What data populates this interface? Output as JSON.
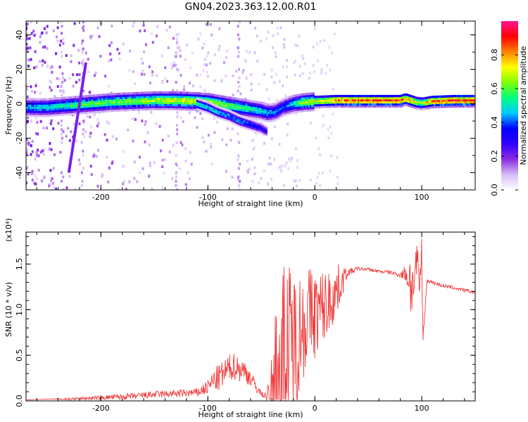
{
  "figure": {
    "title": "GN04.2023.363.12.00.R01"
  },
  "chart_data": [
    {
      "type": "heatmap",
      "xlabel": "Height of straight line (km)",
      "ylabel": "Frequency (Hz)",
      "xlim": [
        -270,
        150
      ],
      "ylim": [
        -50,
        48
      ],
      "x_ticks": [
        "-200",
        "-100",
        "0",
        "100"
      ],
      "y_ticks": [
        "-40",
        "-20",
        "0",
        "20",
        "40"
      ],
      "grid": false,
      "colorbar": {
        "label": "Normalized spectral amplitude",
        "range": [
          0,
          1
        ],
        "ticks": [
          "0.0",
          "0.2",
          "0.4",
          "0.6",
          "0.8"
        ],
        "colormap": [
          "#ffffff",
          "#d6bdf5",
          "#8a2be2",
          "#2f00ff",
          "#0000ff",
          "#00c8ff",
          "#00ff7f",
          "#7fff00",
          "#ffff00",
          "#ff8000",
          "#ff0000",
          "#ff1493"
        ]
      },
      "ridge": {
        "x": [
          -270,
          -250,
          -230,
          -210,
          -190,
          -170,
          -150,
          -130,
          -110,
          -100,
          -90,
          -80,
          -70,
          -60,
          -50,
          -45,
          -40,
          -35,
          -30,
          -20,
          -10,
          0,
          20,
          40,
          60,
          80,
          85,
          90,
          95,
          100,
          110,
          130,
          150
        ],
        "y": [
          -2,
          -2,
          -1,
          0,
          1,
          1.5,
          2,
          2,
          1.5,
          1,
          0,
          -1,
          -2,
          -3,
          -4,
          -5,
          -5,
          -4,
          -2,
          0,
          1,
          1.5,
          2,
          2,
          2,
          2,
          3,
          2,
          1,
          0.5,
          1.5,
          2,
          2
        ],
        "amplitude": [
          0.45,
          0.5,
          0.55,
          0.6,
          0.62,
          0.65,
          0.68,
          0.72,
          0.72,
          0.7,
          0.66,
          0.62,
          0.58,
          0.55,
          0.5,
          0.48,
          0.45,
          0.42,
          0.4,
          0.5,
          0.65,
          0.72,
          0.85,
          0.9,
          0.9,
          0.88,
          0.85,
          0.8,
          0.7,
          0.65,
          0.88,
          0.92,
          0.92
        ]
      },
      "secondary_branch": {
        "x": [
          -110,
          -100,
          -90,
          -80,
          -70,
          -60,
          -50,
          -45
        ],
        "y": [
          0,
          -2,
          -5,
          -7,
          -10,
          -12,
          -14,
          -16
        ],
        "amplitude": [
          0.55,
          0.5,
          0.5,
          0.45,
          0.45,
          0.4,
          0.35,
          0.3
        ]
      },
      "streak": {
        "x": [
          -230,
          -214
        ],
        "y": [
          -40,
          24
        ],
        "amplitude": 0.2
      }
    },
    {
      "type": "line",
      "xlabel": "Height of straight line (km)",
      "ylabel": "SNR (10 * v/v)",
      "y_multiplier": "(x10⁴)",
      "xlim": [
        -270,
        150
      ],
      "ylim": [
        0,
        1.85
      ],
      "x_ticks": [
        "-200",
        "-100",
        "0",
        "100"
      ],
      "y_ticks": [
        "0.0",
        "0.5",
        "1.0",
        "1.5"
      ],
      "color": "#f03c3c",
      "grid": false,
      "x": [
        -270,
        -250,
        -230,
        -210,
        -190,
        -170,
        -150,
        -130,
        -110,
        -100,
        -95,
        -90,
        -85,
        -80,
        -75,
        -70,
        -65,
        -60,
        -55,
        -50,
        -45,
        -40,
        -35,
        -30,
        -25,
        -20,
        -15,
        -10,
        -5,
        0,
        5,
        10,
        15,
        20,
        25,
        30,
        40,
        50,
        60,
        70,
        80,
        85,
        88,
        90,
        92,
        95,
        98,
        100,
        101,
        105,
        110,
        120,
        130,
        140,
        150
      ],
      "y": [
        0.01,
        0.02,
        0.02,
        0.03,
        0.04,
        0.05,
        0.07,
        0.08,
        0.09,
        0.15,
        0.22,
        0.25,
        0.3,
        0.36,
        0.38,
        0.35,
        0.32,
        0.25,
        0.15,
        0.08,
        0.05,
        0.12,
        0.25,
        0.45,
        0.55,
        0.65,
        0.75,
        0.85,
        0.95,
        0.95,
        1.0,
        1.05,
        1.1,
        1.2,
        1.3,
        1.4,
        1.45,
        1.44,
        1.42,
        1.41,
        1.38,
        1.4,
        1.35,
        1.3,
        1.25,
        1.5,
        1.25,
        1.6,
        0.68,
        1.32,
        1.3,
        1.26,
        1.24,
        1.21,
        1.19
      ],
      "noise_envelope": [
        0,
        0,
        0.015,
        0.02,
        0.03,
        0.035,
        0.04,
        0.04,
        0.05,
        0.08,
        0.12,
        0.15,
        0.15,
        0.15,
        0.15,
        0.15,
        0.12,
        0.1,
        0.06,
        0.03,
        0.05,
        0.4,
        1.2,
        1.1,
        1.0,
        0.8,
        0.7,
        0.6,
        0.55,
        0.5,
        0.45,
        0.4,
        0.35,
        0.3,
        0.2,
        0.05,
        0.02,
        0.02,
        0.02,
        0.02,
        0.03,
        0.1,
        0.3,
        0.45,
        0.2,
        0.3,
        0.2,
        0.25,
        0.1,
        0.02,
        0.02,
        0.02,
        0.02,
        0.02,
        0.02
      ]
    }
  ]
}
